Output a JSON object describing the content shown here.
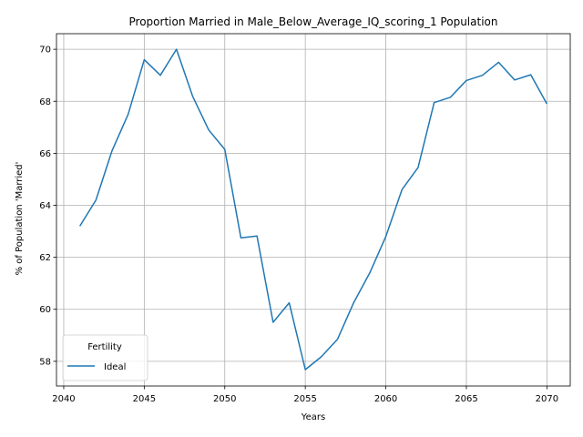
{
  "chart_data": {
    "type": "line",
    "title": "Proportion Married in Male_Below_Average_IQ_scoring_1 Population",
    "xlabel": "Years",
    "ylabel": "% of Population 'Married'",
    "xlim": [
      2039.55,
      2071.45
    ],
    "ylim": [
      57.05,
      70.6
    ],
    "xticks": [
      2040,
      2045,
      2050,
      2055,
      2060,
      2065,
      2070
    ],
    "yticks": [
      58,
      60,
      62,
      64,
      66,
      68,
      70
    ],
    "grid": true,
    "legend": {
      "title": "Fertility",
      "placement": "lower-left"
    },
    "x": [
      2041,
      2042,
      2043,
      2044,
      2045,
      2046,
      2047,
      2048,
      2049,
      2050,
      2051,
      2052,
      2053,
      2054,
      2055,
      2056,
      2057,
      2058,
      2059,
      2060,
      2061,
      2062,
      2063,
      2064,
      2065,
      2066,
      2067,
      2068,
      2069,
      2070
    ],
    "series": [
      {
        "name": "Ideal",
        "color": "#1f77b4",
        "values": [
          63.2,
          64.2,
          66.1,
          67.5,
          69.6,
          69.0,
          70.0,
          68.2,
          66.9,
          66.15,
          62.75,
          62.82,
          59.5,
          60.25,
          57.68,
          58.18,
          58.85,
          60.25,
          61.4,
          62.8,
          64.6,
          65.45,
          67.95,
          68.15,
          68.8,
          69.0,
          69.5,
          68.82,
          69.02,
          67.9
        ]
      }
    ]
  }
}
